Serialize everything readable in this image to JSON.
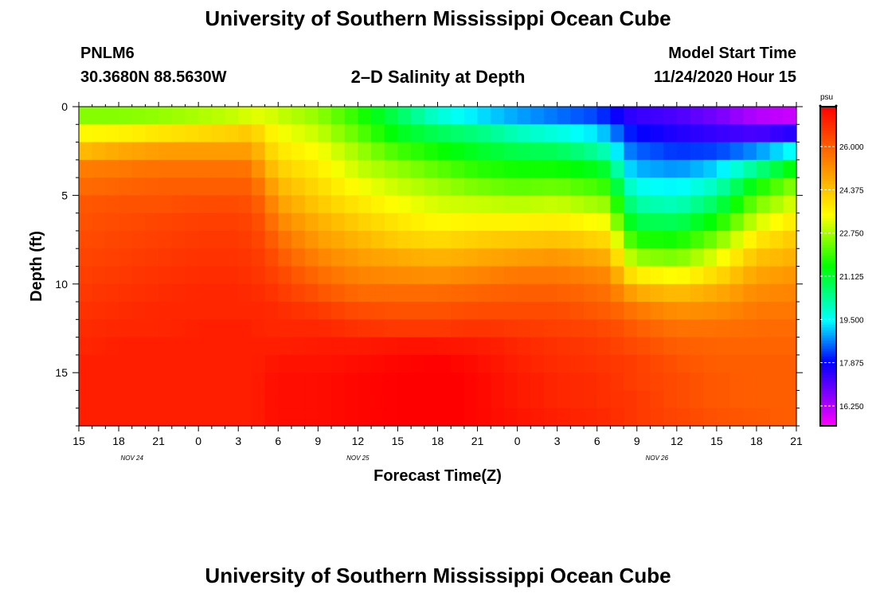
{
  "header": {
    "title": "University of Southern Mississippi Ocean Cube",
    "station": "PNLM6",
    "coordinates": "30.3680N 88.5630W",
    "subtitle": "2–D Salinity at Depth",
    "start_label": "Model Start Time",
    "start_value": "11/24/2020 Hour 15"
  },
  "footer": {
    "title": "University of Southern Mississippi Ocean Cube"
  },
  "chart_data": {
    "type": "heatmap",
    "title": "2–D Salinity at Depth",
    "xlabel": "Forecast Time(Z)",
    "ylabel": "Depth (ft)",
    "x_ticks": [
      "15",
      "18",
      "21",
      "0",
      "3",
      "6",
      "9",
      "12",
      "15",
      "18",
      "21",
      "0",
      "3",
      "6",
      "9",
      "12",
      "15",
      "18",
      "21"
    ],
    "x_range_hours": [
      0,
      54
    ],
    "date_labels": [
      {
        "label": "NOV 24",
        "hour": 4
      },
      {
        "label": "NOV 25",
        "hour": 21
      },
      {
        "label": "NOV 26",
        "hour": 43.5
      }
    ],
    "y_ticks": [
      0,
      5,
      10,
      15
    ],
    "ylim": [
      0,
      18
    ],
    "colorbar": {
      "unit": "psu",
      "labels": [
        "26.000",
        "24.375",
        "22.750",
        "21.125",
        "19.500",
        "17.875",
        "16.250"
      ],
      "range": [
        15.5,
        27.5
      ]
    },
    "depth_levels_ft": [
      0.5,
      1.5,
      2.5,
      3.5,
      4.5,
      5.5,
      6.5,
      7.5,
      8.5,
      9.5,
      10.5,
      11.5,
      12.5,
      13.5,
      14.5,
      15.5,
      16.5,
      17.5
    ],
    "profiles": [
      {
        "hour": 0,
        "salinity": [
          22.5,
          23.5,
          24.5,
          25.5,
          25.8,
          26.1,
          26.2,
          26.3,
          26.4,
          26.5,
          26.6,
          26.7,
          26.8,
          26.9,
          27.0,
          27.0,
          27.0,
          27.0
        ]
      },
      {
        "hour": 3,
        "salinity": [
          22.5,
          23.6,
          24.8,
          25.6,
          25.9,
          26.2,
          26.3,
          26.4,
          26.5,
          26.6,
          26.7,
          26.8,
          26.9,
          27.0,
          27.0,
          27.0,
          27.0,
          27.0
        ]
      },
      {
        "hour": 6,
        "salinity": [
          22.6,
          23.8,
          25.0,
          25.7,
          26.0,
          26.2,
          26.4,
          26.5,
          26.6,
          26.7,
          26.8,
          26.9,
          26.9,
          27.0,
          27.0,
          27.0,
          27.0,
          27.0
        ]
      },
      {
        "hour": 9,
        "salinity": [
          22.8,
          24.0,
          25.0,
          25.7,
          26.0,
          26.3,
          26.5,
          26.6,
          26.7,
          26.8,
          26.9,
          26.9,
          27.0,
          27.0,
          27.0,
          27.0,
          27.0,
          27.0
        ]
      },
      {
        "hour": 12,
        "salinity": [
          23.0,
          24.2,
          25.0,
          25.7,
          26.0,
          26.3,
          26.5,
          26.6,
          26.7,
          26.8,
          26.9,
          26.9,
          27.0,
          27.0,
          27.0,
          27.0,
          27.0,
          27.0
        ]
      },
      {
        "hour": 13,
        "salinity": [
          23.2,
          24.3,
          25.0,
          25.6,
          26.0,
          26.2,
          26.4,
          26.5,
          26.6,
          26.7,
          26.8,
          26.9,
          27.0,
          27.0,
          27.0,
          27.0,
          27.0,
          27.0
        ]
      },
      {
        "hour": 14,
        "salinity": [
          23.2,
          23.8,
          24.3,
          24.8,
          25.3,
          25.8,
          26.1,
          26.3,
          26.5,
          26.6,
          26.8,
          26.9,
          26.9,
          27.0,
          27.1,
          27.2,
          27.2,
          27.2
        ]
      },
      {
        "hour": 15,
        "salinity": [
          23.0,
          23.4,
          23.8,
          24.2,
          24.6,
          25.0,
          25.4,
          25.8,
          26.1,
          26.4,
          26.6,
          26.8,
          26.9,
          27.0,
          27.2,
          27.3,
          27.3,
          27.3
        ]
      },
      {
        "hour": 18,
        "salinity": [
          22.6,
          23.0,
          23.4,
          23.7,
          24.0,
          24.3,
          24.7,
          25.0,
          25.4,
          25.8,
          26.2,
          26.6,
          26.9,
          27.1,
          27.2,
          27.3,
          27.3,
          27.3
        ]
      },
      {
        "hour": 21,
        "salinity": [
          21.8,
          22.2,
          22.7,
          23.0,
          23.4,
          23.8,
          24.2,
          24.6,
          25.0,
          25.4,
          25.8,
          26.3,
          26.7,
          27.1,
          27.3,
          27.4,
          27.4,
          27.4
        ]
      },
      {
        "hour": 24,
        "salinity": [
          20.8,
          21.3,
          22.0,
          22.6,
          23.0,
          23.4,
          23.8,
          24.2,
          24.8,
          25.3,
          25.8,
          26.2,
          26.6,
          27.2,
          27.4,
          27.5,
          27.5,
          27.5
        ]
      },
      {
        "hour": 27,
        "salinity": [
          19.8,
          20.8,
          21.6,
          22.2,
          22.7,
          23.1,
          23.5,
          24.0,
          24.6,
          25.2,
          25.8,
          26.2,
          26.6,
          27.2,
          27.5,
          27.6,
          27.6,
          27.6
        ]
      },
      {
        "hour": 30,
        "salinity": [
          19.3,
          20.5,
          21.2,
          21.8,
          22.4,
          23.0,
          23.6,
          24.2,
          24.8,
          25.4,
          25.9,
          26.3,
          26.7,
          27.1,
          27.3,
          27.4,
          27.4,
          27.4
        ]
      },
      {
        "hour": 33,
        "salinity": [
          18.9,
          20.0,
          20.9,
          21.6,
          22.2,
          22.9,
          23.6,
          24.3,
          25.0,
          25.6,
          26.0,
          26.3,
          26.6,
          26.9,
          27.0,
          27.1,
          27.1,
          27.2
        ]
      },
      {
        "hour": 36,
        "salinity": [
          18.6,
          19.7,
          20.8,
          21.6,
          22.3,
          23.0,
          23.7,
          24.4,
          25.1,
          25.6,
          26.0,
          26.3,
          26.5,
          26.7,
          26.8,
          26.9,
          26.9,
          27.0
        ]
      },
      {
        "hour": 39,
        "salinity": [
          18.3,
          19.3,
          20.3,
          21.3,
          22.0,
          22.7,
          23.4,
          24.1,
          24.8,
          25.4,
          25.8,
          26.1,
          26.4,
          26.6,
          26.7,
          26.8,
          26.8,
          26.9
        ]
      },
      {
        "hour": 40,
        "salinity": [
          18.0,
          18.9,
          19.9,
          21.0,
          21.8,
          22.6,
          23.3,
          24.0,
          24.7,
          25.3,
          25.7,
          26.0,
          26.3,
          26.5,
          26.6,
          26.7,
          26.7,
          26.8
        ]
      },
      {
        "hour": 41,
        "salinity": [
          17.6,
          18.2,
          18.8,
          19.4,
          20.2,
          20.9,
          21.6,
          22.4,
          23.2,
          24.2,
          25.2,
          25.8,
          26.2,
          26.4,
          26.6,
          26.6,
          26.7,
          26.7
        ]
      },
      {
        "hour": 42,
        "salinity": [
          17.4,
          17.9,
          18.5,
          19.0,
          19.6,
          20.2,
          20.9,
          21.7,
          22.6,
          23.7,
          24.8,
          25.6,
          26.0,
          26.3,
          26.5,
          26.5,
          26.6,
          26.6
        ]
      },
      {
        "hour": 45,
        "salinity": [
          17.2,
          17.6,
          18.2,
          18.8,
          19.4,
          20.0,
          20.8,
          21.6,
          22.4,
          23.4,
          24.5,
          25.2,
          25.7,
          26.0,
          26.2,
          26.3,
          26.3,
          26.4
        ]
      },
      {
        "hour": 48,
        "salinity": [
          16.8,
          17.4,
          18.3,
          19.2,
          20.0,
          20.8,
          21.6,
          22.4,
          23.2,
          24.0,
          24.8,
          25.3,
          25.7,
          25.9,
          26.0,
          26.1,
          26.1,
          26.2
        ]
      },
      {
        "hour": 51,
        "salinity": [
          16.2,
          17.2,
          18.8,
          20.4,
          21.6,
          22.4,
          23.1,
          23.8,
          24.4,
          24.9,
          25.3,
          25.6,
          25.8,
          25.9,
          26.0,
          26.0,
          26.0,
          26.1
        ]
      },
      {
        "hour": 54,
        "salinity": [
          16.0,
          17.6,
          19.6,
          21.6,
          22.6,
          23.2,
          23.8,
          24.3,
          24.7,
          25.1,
          25.4,
          25.6,
          25.8,
          25.9,
          26.0,
          26.0,
          26.0,
          26.0
        ]
      }
    ]
  }
}
